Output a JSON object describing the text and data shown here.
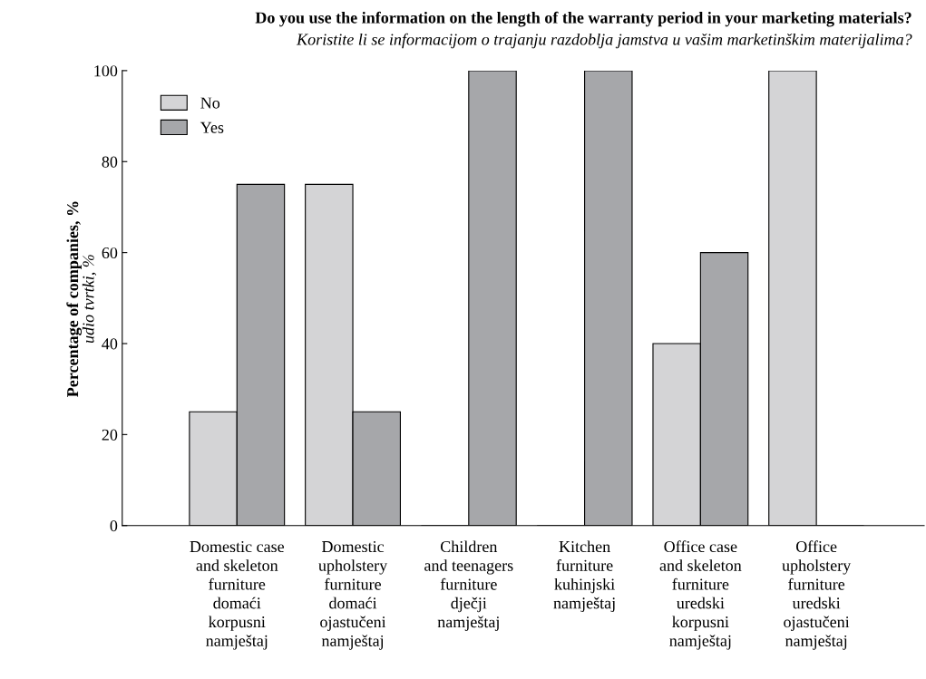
{
  "chart_data": {
    "type": "bar",
    "title": "Do you use the information on the length of the warranty period in your marketing materials?",
    "subtitle": "Koristite li se informacijom o trajanju razdoblja jamstva u vašim marketinškim materijalima?",
    "ylabel": "Percentage of companies, %\nudio tvrtki, %",
    "categories": [
      "Domestic case\nand skeleton\nfurniture\ndomaći\nkorpusni\nnamještaj",
      "Domestic\nupholstery\nfurniture\ndomaći\nojastučeni\nnamještaj",
      "Children\nand teenagers\nfurniture\ndječji\nnamještaj",
      "Kitchen\nfurniture\nkuhinjski\nnamještaj",
      "Office case\nand skeleton\nfurniture\nuredski\nkorpusni\nnamještaj",
      "Office\nupholstery\nfurniture\nuredski\nojastučeni\nnamještaj"
    ],
    "series": [
      {
        "name": "No",
        "color": "#d4d4d6",
        "values": [
          25,
          75,
          0,
          0,
          40,
          100
        ]
      },
      {
        "name": "Yes",
        "color": "#a6a7aa",
        "values": [
          75,
          25,
          100,
          100,
          60,
          0
        ]
      }
    ],
    "ylim": [
      0,
      100
    ],
    "yticks": [
      0,
      20,
      40,
      60,
      80,
      100
    ],
    "grid": false,
    "legend": "top left"
  }
}
